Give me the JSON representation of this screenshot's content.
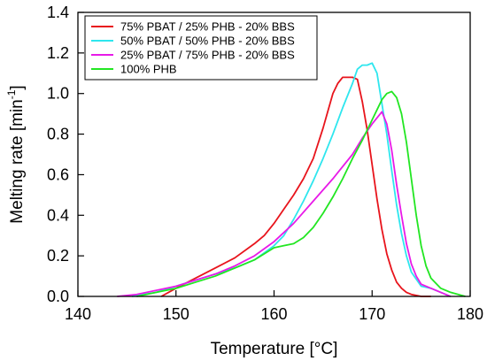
{
  "chart_data": {
    "type": "line",
    "xlabel": "Temperature [°C]",
    "ylabel_main": "Melting rate [min",
    "ylabel_sup": "-1",
    "ylabel_close": "]",
    "xlim": [
      140,
      180
    ],
    "ylim": [
      0.0,
      1.4
    ],
    "x_ticks": [
      140,
      150,
      160,
      170,
      180
    ],
    "x_tick_labels": [
      "140",
      "150",
      "160",
      "170",
      "180"
    ],
    "y_ticks": [
      0.0,
      0.2,
      0.4,
      0.6,
      0.8,
      1.0,
      1.2,
      1.4
    ],
    "y_tick_labels": [
      "0.0",
      "0.2",
      "0.4",
      "0.6",
      "0.8",
      "1.0",
      "1.2",
      "1.4"
    ],
    "grid": false,
    "legend_position": "top-left",
    "series": [
      {
        "name": "75% PBAT / 25% PHB - 20% BBS",
        "color": "#e8141c",
        "x": [
          148.5,
          150,
          152,
          154,
          156,
          158,
          159,
          160,
          161,
          162,
          163,
          164,
          165,
          166,
          166.5,
          167,
          167.5,
          168,
          168.5,
          169,
          169.5,
          170,
          170.5,
          171,
          171.5,
          172,
          172.5,
          173,
          173.5,
          174,
          175,
          176
        ],
        "y": [
          0.0,
          0.04,
          0.09,
          0.14,
          0.19,
          0.26,
          0.3,
          0.36,
          0.43,
          0.5,
          0.58,
          0.68,
          0.83,
          1.0,
          1.05,
          1.08,
          1.08,
          1.08,
          1.07,
          0.96,
          0.82,
          0.65,
          0.48,
          0.33,
          0.21,
          0.13,
          0.07,
          0.04,
          0.02,
          0.01,
          0.0,
          0.0
        ]
      },
      {
        "name": "50% PBAT / 50% PHB - 20% BBS",
        "color": "#2ee6ee",
        "x": [
          145.5,
          148,
          150,
          152,
          154,
          156,
          158,
          160,
          161,
          162,
          163,
          164,
          165,
          166,
          167,
          168,
          168.5,
          169,
          169.5,
          170,
          170.5,
          171,
          171.5,
          172,
          172.5,
          173,
          173.5,
          174,
          175,
          176,
          177,
          178
        ],
        "y": [
          0.0,
          0.02,
          0.05,
          0.08,
          0.11,
          0.14,
          0.18,
          0.25,
          0.3,
          0.38,
          0.47,
          0.57,
          0.68,
          0.8,
          0.93,
          1.05,
          1.12,
          1.14,
          1.14,
          1.15,
          1.1,
          0.95,
          0.8,
          0.62,
          0.45,
          0.31,
          0.2,
          0.12,
          0.05,
          0.04,
          0.02,
          0.0
        ]
      },
      {
        "name": "25% PBAT / 75% PHB - 20% BBS",
        "color": "#e81ae8",
        "x": [
          144,
          146,
          148,
          150,
          152,
          154,
          156,
          158,
          160,
          162,
          164,
          166,
          168,
          169,
          170,
          170.5,
          171,
          171.5,
          172,
          172.5,
          173,
          173.5,
          174,
          174.5,
          175,
          176,
          177,
          178
        ],
        "y": [
          0.0,
          0.01,
          0.03,
          0.05,
          0.08,
          0.11,
          0.15,
          0.2,
          0.27,
          0.36,
          0.47,
          0.58,
          0.7,
          0.78,
          0.85,
          0.88,
          0.91,
          0.85,
          0.72,
          0.55,
          0.4,
          0.26,
          0.16,
          0.1,
          0.06,
          0.04,
          0.02,
          0.0
        ]
      },
      {
        "name": "100% PHB",
        "color": "#22e622",
        "x": [
          146,
          148,
          150,
          152,
          154,
          156,
          158,
          159,
          160,
          161,
          162,
          163,
          164,
          165,
          166,
          167,
          168,
          169,
          170,
          170.5,
          171,
          171.5,
          172,
          172.5,
          173,
          173.5,
          174,
          174.5,
          175,
          175.5,
          176,
          177,
          178,
          179.5
        ],
        "y": [
          0.0,
          0.02,
          0.04,
          0.07,
          0.1,
          0.14,
          0.18,
          0.21,
          0.24,
          0.25,
          0.26,
          0.29,
          0.34,
          0.41,
          0.49,
          0.58,
          0.68,
          0.77,
          0.87,
          0.92,
          0.97,
          1.0,
          1.01,
          0.98,
          0.9,
          0.76,
          0.58,
          0.4,
          0.25,
          0.15,
          0.09,
          0.04,
          0.02,
          0.0
        ]
      }
    ]
  }
}
